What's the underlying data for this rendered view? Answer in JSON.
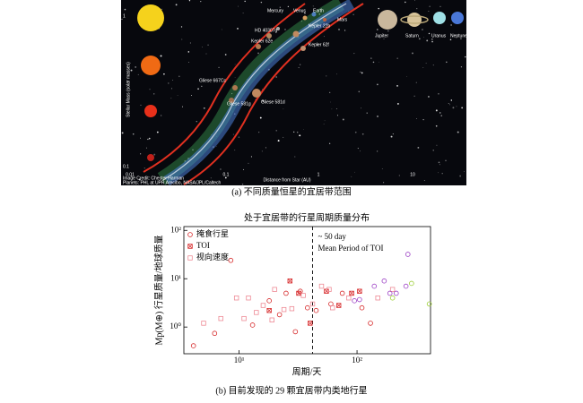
{
  "figure_a": {
    "y_label": "Stellar Mass (solar masses)",
    "x_label": "Distance from Star (AU)",
    "y_ticks": [
      "1",
      "0.1"
    ],
    "x_ticks": [
      "0.01",
      "0.1",
      "1",
      "10"
    ],
    "planets": [
      "Mercury",
      "Venus",
      "Earth",
      "Mars",
      "HD 40307g",
      "Kepler 22b",
      "Kepler 62e",
      "Kepler 62f",
      "Gliese 667Cc",
      "Gliese 581g",
      "Gliese 581d",
      "Jupiter",
      "Saturn",
      "Uranus",
      "Neptune"
    ],
    "credits": [
      "Image Credit: Chester Harman",
      "Planets: PHL at UPR Arecibo, NASA/JPL/Caltech"
    ],
    "caption": "(a) 不同质量恒星的宜居带范围"
  },
  "chart_data": {
    "type": "scatter",
    "title": "处于宜居带的行星周期质量分布",
    "x_label": "周期/天",
    "y_label": "Mp(M⊕) 行星质量/地球质量",
    "log_x": true,
    "log_y": true,
    "xlim": [
      3.4,
      420
    ],
    "ylim": [
      0.28,
      120
    ],
    "xticks": [
      {
        "value": 10,
        "label": "10¹"
      },
      {
        "value": 100,
        "label": "10²"
      }
    ],
    "yticks": [
      {
        "value": 1,
        "label": "10⁰"
      },
      {
        "value": 10,
        "label": "10¹"
      },
      {
        "value": 100,
        "label": "10²"
      }
    ],
    "legend": "upper-left",
    "vline": 42,
    "annotations": [
      "~ 50 day",
      "Mean Period of TOI"
    ],
    "series": [
      {
        "name": "掩食行星",
        "color": "#d62728",
        "marker": "circle",
        "x": [
          4.1,
          6.2,
          8.5,
          13,
          18,
          22,
          25,
          30,
          33,
          38,
          45,
          60,
          75,
          110,
          130
        ],
        "y": [
          0.41,
          0.74,
          24,
          1.1,
          3.5,
          1.8,
          5,
          0.8,
          5.5,
          2.5,
          2.2,
          3,
          5,
          2.5,
          1.2
        ]
      },
      {
        "name": "TOI",
        "color": "#d62728",
        "marker": "boxx",
        "x": [
          18,
          27,
          32,
          40,
          55,
          70,
          90,
          105
        ],
        "y": [
          2.2,
          9,
          5,
          1.2,
          5.5,
          2.8,
          5,
          5.5
        ]
      },
      {
        "name": "视向速度",
        "color": "#ee8a95",
        "marker": "square",
        "x": [
          5,
          7,
          9.5,
          11,
          12,
          14,
          16,
          19,
          20,
          24,
          28,
          35,
          42,
          50,
          58,
          62,
          85,
          150,
          200
        ],
        "y": [
          1.2,
          1.5,
          4,
          1.5,
          4,
          2,
          2.8,
          1.4,
          6,
          2.3,
          2.4,
          4.5,
          3,
          7,
          6,
          2.5,
          4,
          4,
          6
        ]
      },
      {
        "color": "#9b3fc4",
        "marker": "circle",
        "x": [
          95,
          105,
          140,
          170,
          190,
          215,
          260,
          270
        ],
        "y": [
          3.5,
          3.7,
          7,
          9,
          5,
          5,
          7,
          32
        ]
      },
      {
        "color": "#9acd32",
        "marker": "circle",
        "x": [
          200,
          290,
          410
        ],
        "y": [
          4,
          8,
          3
        ]
      }
    ]
  },
  "figure_b": {
    "caption": "(b) 目前发现的 29 颗宜居带内类地行星"
  }
}
